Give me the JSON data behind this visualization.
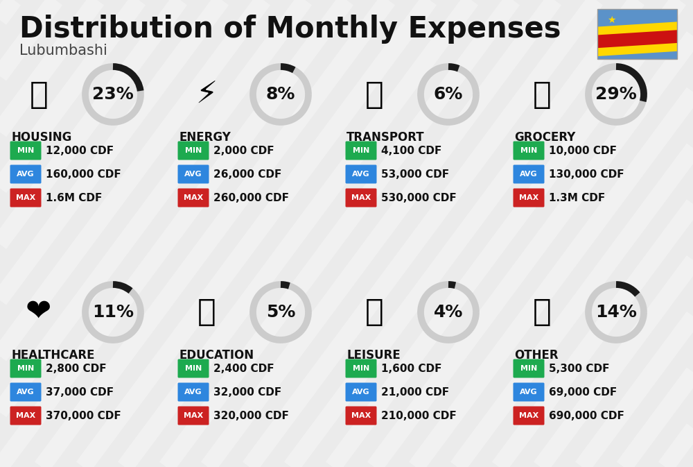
{
  "title": "Distribution of Monthly Expenses",
  "subtitle": "Lubumbashi",
  "background_color": "#ebebeb",
  "categories": [
    {
      "name": "HOUSING",
      "pct": 23,
      "min": "12,000 CDF",
      "avg": "160,000 CDF",
      "max": "1.6M CDF",
      "icon": "🏗",
      "row": 0,
      "col": 0
    },
    {
      "name": "ENERGY",
      "pct": 8,
      "min": "2,000 CDF",
      "avg": "26,000 CDF",
      "max": "260,000 CDF",
      "icon": "⚡",
      "row": 0,
      "col": 1
    },
    {
      "name": "TRANSPORT",
      "pct": 6,
      "min": "4,100 CDF",
      "avg": "53,000 CDF",
      "max": "530,000 CDF",
      "icon": "🚌",
      "row": 0,
      "col": 2
    },
    {
      "name": "GROCERY",
      "pct": 29,
      "min": "10,000 CDF",
      "avg": "130,000 CDF",
      "max": "1.3M CDF",
      "icon": "🛒",
      "row": 0,
      "col": 3
    },
    {
      "name": "HEALTHCARE",
      "pct": 11,
      "min": "2,800 CDF",
      "avg": "37,000 CDF",
      "max": "370,000 CDF",
      "icon": "❤️",
      "row": 1,
      "col": 0
    },
    {
      "name": "EDUCATION",
      "pct": 5,
      "min": "2,400 CDF",
      "avg": "32,000 CDF",
      "max": "320,000 CDF",
      "icon": "🎓",
      "row": 1,
      "col": 1
    },
    {
      "name": "LEISURE",
      "pct": 4,
      "min": "1,600 CDF",
      "avg": "21,000 CDF",
      "max": "210,000 CDF",
      "icon": "🛍️",
      "row": 1,
      "col": 2
    },
    {
      "name": "OTHER",
      "pct": 14,
      "min": "5,300 CDF",
      "avg": "69,000 CDF",
      "max": "690,000 CDF",
      "icon": "👜",
      "row": 1,
      "col": 3
    }
  ],
  "min_color": "#1daa4f",
  "avg_color": "#2e86de",
  "max_color": "#cc2222",
  "arc_fg_color": "#1a1a1a",
  "arc_bg_color": "#cccccc",
  "text_dark": "#111111",
  "title_fontsize": 30,
  "subtitle_fontsize": 15,
  "cat_fontsize": 12,
  "pct_fontsize": 18,
  "val_fontsize": 11,
  "badge_label_fontsize": 8
}
